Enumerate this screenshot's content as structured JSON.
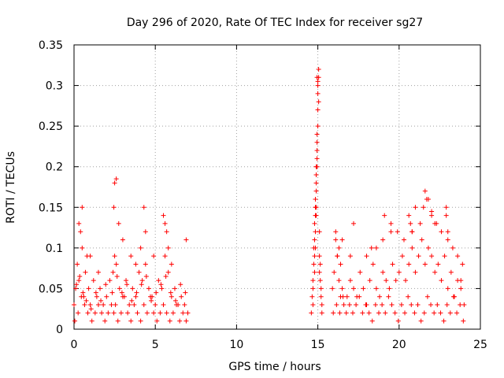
{
  "chart_data": {
    "type": "scatter",
    "title": "Day 296 of 2020, Rate Of TEC Index for receiver sg27",
    "xlabel": "GPS time / hours",
    "ylabel": "ROTI / TECUs",
    "xlim": [
      0,
      25
    ],
    "ylim": [
      0,
      0.35
    ],
    "xticks": [
      0,
      5,
      10,
      15,
      20,
      25
    ],
    "xtick_labels": [
      "0",
      "5",
      "10",
      "15",
      "20",
      "25"
    ],
    "yticks": [
      0,
      0.05,
      0.1,
      0.15,
      0.2,
      0.25,
      0.3,
      0.35
    ],
    "ytick_labels": [
      "0",
      "0.05",
      "0.1",
      "0.15",
      "0.2",
      "0.25",
      "0.3",
      "0.35"
    ],
    "grid": true,
    "legend": "none",
    "marker": "+",
    "color": "#ff0000",
    "series": [
      {
        "x": [
          0.0,
          0.1,
          0.2,
          0.3,
          0.4,
          0.5,
          0.6,
          0.7,
          0.8,
          0.9,
          1.0,
          1.2,
          1.4,
          1.6,
          1.8,
          2.0,
          2.2,
          2.4,
          2.5,
          2.6,
          2.8,
          3.0,
          3.2,
          3.4,
          3.6,
          3.8,
          4.0,
          4.2,
          4.4,
          4.6,
          4.8,
          5.0,
          5.2,
          5.4,
          5.6,
          5.8,
          6.0,
          6.2,
          6.4,
          6.6,
          6.8,
          7.0,
          0.05,
          0.25,
          0.45,
          0.65,
          0.85,
          1.1,
          1.3,
          1.5,
          1.7,
          1.9,
          2.1,
          2.3,
          2.45,
          2.55,
          2.7,
          2.9,
          3.1,
          3.3,
          3.5,
          3.7,
          3.9,
          4.1,
          4.3,
          4.5,
          4.7,
          4.9,
          5.1,
          5.3,
          5.5,
          5.7,
          5.9,
          6.1,
          6.3,
          6.5,
          6.7,
          6.9,
          0.15,
          0.35,
          0.55,
          0.75,
          1.05,
          1.35,
          1.65,
          1.95,
          2.35,
          2.65,
          2.95,
          3.25,
          3.55,
          3.85,
          4.15,
          4.45,
          4.75,
          5.05,
          5.35,
          5.65,
          5.95,
          6.25,
          6.55,
          6.85,
          0.3,
          0.5,
          2.5,
          2.6,
          2.45,
          2.75,
          3.0,
          3.5,
          4.3,
          4.4,
          4.1,
          5.5,
          5.6,
          5.7,
          5.8,
          6.9,
          1.0,
          1.5,
          3.8,
          4.9,
          6.0,
          14.6,
          14.65,
          14.7,
          14.75,
          14.8,
          14.85,
          14.9,
          14.95,
          15.0,
          15.05,
          15.1,
          15.15,
          15.2,
          15.25,
          14.7,
          14.75,
          14.8,
          14.85,
          14.9,
          14.95,
          15.0,
          15.05,
          15.1,
          14.8,
          14.85,
          14.9,
          14.95,
          15.0,
          15.05,
          14.85,
          14.9,
          14.95,
          15.0,
          14.9,
          14.95,
          14.95,
          15.0,
          14.9,
          14.85,
          15.15,
          15.2,
          14.8,
          15.1,
          14.7,
          15.25,
          15.9,
          16.0,
          16.1,
          16.2,
          16.3,
          16.4,
          16.5,
          16.6,
          16.8,
          17.0,
          17.2,
          17.4,
          17.6,
          17.8,
          18.0,
          18.2,
          18.4,
          18.6,
          18.8,
          19.0,
          19.2,
          19.4,
          19.6,
          19.8,
          20.0,
          20.2,
          20.4,
          20.6,
          20.8,
          21.0,
          21.2,
          21.4,
          21.6,
          21.8,
          22.0,
          22.2,
          22.4,
          22.6,
          22.8,
          23.0,
          23.2,
          23.4,
          23.6,
          23.8,
          24.0,
          15.95,
          16.15,
          16.35,
          16.55,
          16.75,
          16.95,
          17.15,
          17.35,
          17.55,
          17.75,
          17.95,
          18.15,
          18.35,
          18.55,
          18.75,
          18.95,
          19.15,
          19.35,
          19.55,
          19.75,
          19.95,
          20.15,
          20.35,
          20.55,
          20.75,
          20.95,
          21.15,
          21.35,
          21.55,
          21.75,
          21.95,
          22.15,
          22.35,
          22.55,
          22.75,
          22.95,
          23.15,
          23.35,
          23.55,
          23.75,
          23.95,
          16.1,
          16.3,
          16.5,
          17.2,
          18.0,
          18.6,
          19.1,
          19.5,
          19.9,
          20.3,
          20.6,
          20.8,
          21.0,
          21.3,
          21.6,
          21.8,
          22.0,
          22.3,
          22.6,
          22.9,
          23.0,
          23.3,
          23.6,
          23.9,
          16.2,
          19.0,
          19.5,
          20.7,
          20.8,
          21.5,
          21.7,
          22.0,
          22.2,
          22.9,
          23.0,
          16.4,
          17.0,
          18.3,
          23.8
        ],
        "y": [
          0.03,
          0.05,
          0.08,
          0.06,
          0.12,
          0.1,
          0.04,
          0.07,
          0.09,
          0.05,
          0.03,
          0.06,
          0.04,
          0.05,
          0.03,
          0.04,
          0.06,
          0.07,
          0.09,
          0.08,
          0.05,
          0.04,
          0.06,
          0.03,
          0.05,
          0.04,
          0.07,
          0.06,
          0.08,
          0.05,
          0.04,
          0.03,
          0.06,
          0.05,
          0.09,
          0.07,
          0.04,
          0.05,
          0.03,
          0.04,
          0.03,
          0.02,
          0.01,
          0.02,
          0.04,
          0.03,
          0.02,
          0.01,
          0.02,
          0.03,
          0.02,
          0.01,
          0.02,
          0.03,
          0.02,
          0.03,
          0.01,
          0.02,
          0.04,
          0.02,
          0.01,
          0.03,
          0.02,
          0.01,
          0.03,
          0.02,
          0.04,
          0.02,
          0.01,
          0.02,
          0.03,
          0.02,
          0.01,
          0.02,
          0.03,
          0.01,
          0.02,
          0.01,
          0.055,
          0.065,
          0.045,
          0.035,
          0.025,
          0.045,
          0.035,
          0.055,
          0.045,
          0.065,
          0.045,
          0.055,
          0.035,
          0.045,
          0.055,
          0.065,
          0.035,
          0.045,
          0.055,
          0.065,
          0.045,
          0.035,
          0.055,
          0.045,
          0.13,
          0.15,
          0.18,
          0.185,
          0.15,
          0.13,
          0.11,
          0.09,
          0.15,
          0.12,
          0.1,
          0.14,
          0.13,
          0.12,
          0.1,
          0.11,
          0.09,
          0.07,
          0.08,
          0.09,
          0.08,
          0.02,
          0.04,
          0.06,
          0.1,
          0.13,
          0.15,
          0.18,
          0.21,
          0.25,
          0.28,
          0.12,
          0.08,
          0.05,
          0.03,
          0.05,
          0.08,
          0.11,
          0.16,
          0.2,
          0.24,
          0.3,
          0.32,
          0.09,
          0.07,
          0.12,
          0.15,
          0.22,
          0.29,
          0.31,
          0.14,
          0.19,
          0.23,
          0.27,
          0.17,
          0.2,
          0.31,
          0.305,
          0.14,
          0.1,
          0.06,
          0.04,
          0.09,
          0.07,
          0.03,
          0.02,
          0.05,
          0.07,
          0.11,
          0.09,
          0.06,
          0.04,
          0.05,
          0.03,
          0.04,
          0.06,
          0.05,
          0.04,
          0.07,
          0.05,
          0.03,
          0.06,
          0.08,
          0.05,
          0.04,
          0.07,
          0.06,
          0.05,
          0.08,
          0.06,
          0.07,
          0.09,
          0.06,
          0.08,
          0.1,
          0.07,
          0.09,
          0.11,
          0.08,
          0.1,
          0.09,
          0.07,
          0.08,
          0.06,
          0.09,
          0.05,
          0.07,
          0.04,
          0.06,
          0.05,
          0.03,
          0.02,
          0.03,
          0.02,
          0.04,
          0.02,
          0.03,
          0.02,
          0.03,
          0.04,
          0.02,
          0.03,
          0.02,
          0.01,
          0.03,
          0.02,
          0.03,
          0.02,
          0.04,
          0.03,
          0.02,
          0.01,
          0.03,
          0.02,
          0.04,
          0.03,
          0.02,
          0.03,
          0.01,
          0.02,
          0.04,
          0.03,
          0.02,
          0.03,
          0.02,
          0.01,
          0.03,
          0.02,
          0.04,
          0.02,
          0.03,
          0.01,
          0.12,
          0.1,
          0.11,
          0.13,
          0.09,
          0.1,
          0.14,
          0.13,
          0.12,
          0.11,
          0.14,
          0.12,
          0.15,
          0.13,
          0.17,
          0.16,
          0.14,
          0.13,
          0.12,
          0.15,
          0.11,
          0.1,
          0.09,
          0.08,
          0.09,
          0.11,
          0.12,
          0.13,
          0.12,
          0.15,
          0.16,
          0.145,
          0.13,
          0.14,
          0.12,
          0.08,
          0.09,
          0.1,
          0.06
        ]
      }
    ]
  }
}
